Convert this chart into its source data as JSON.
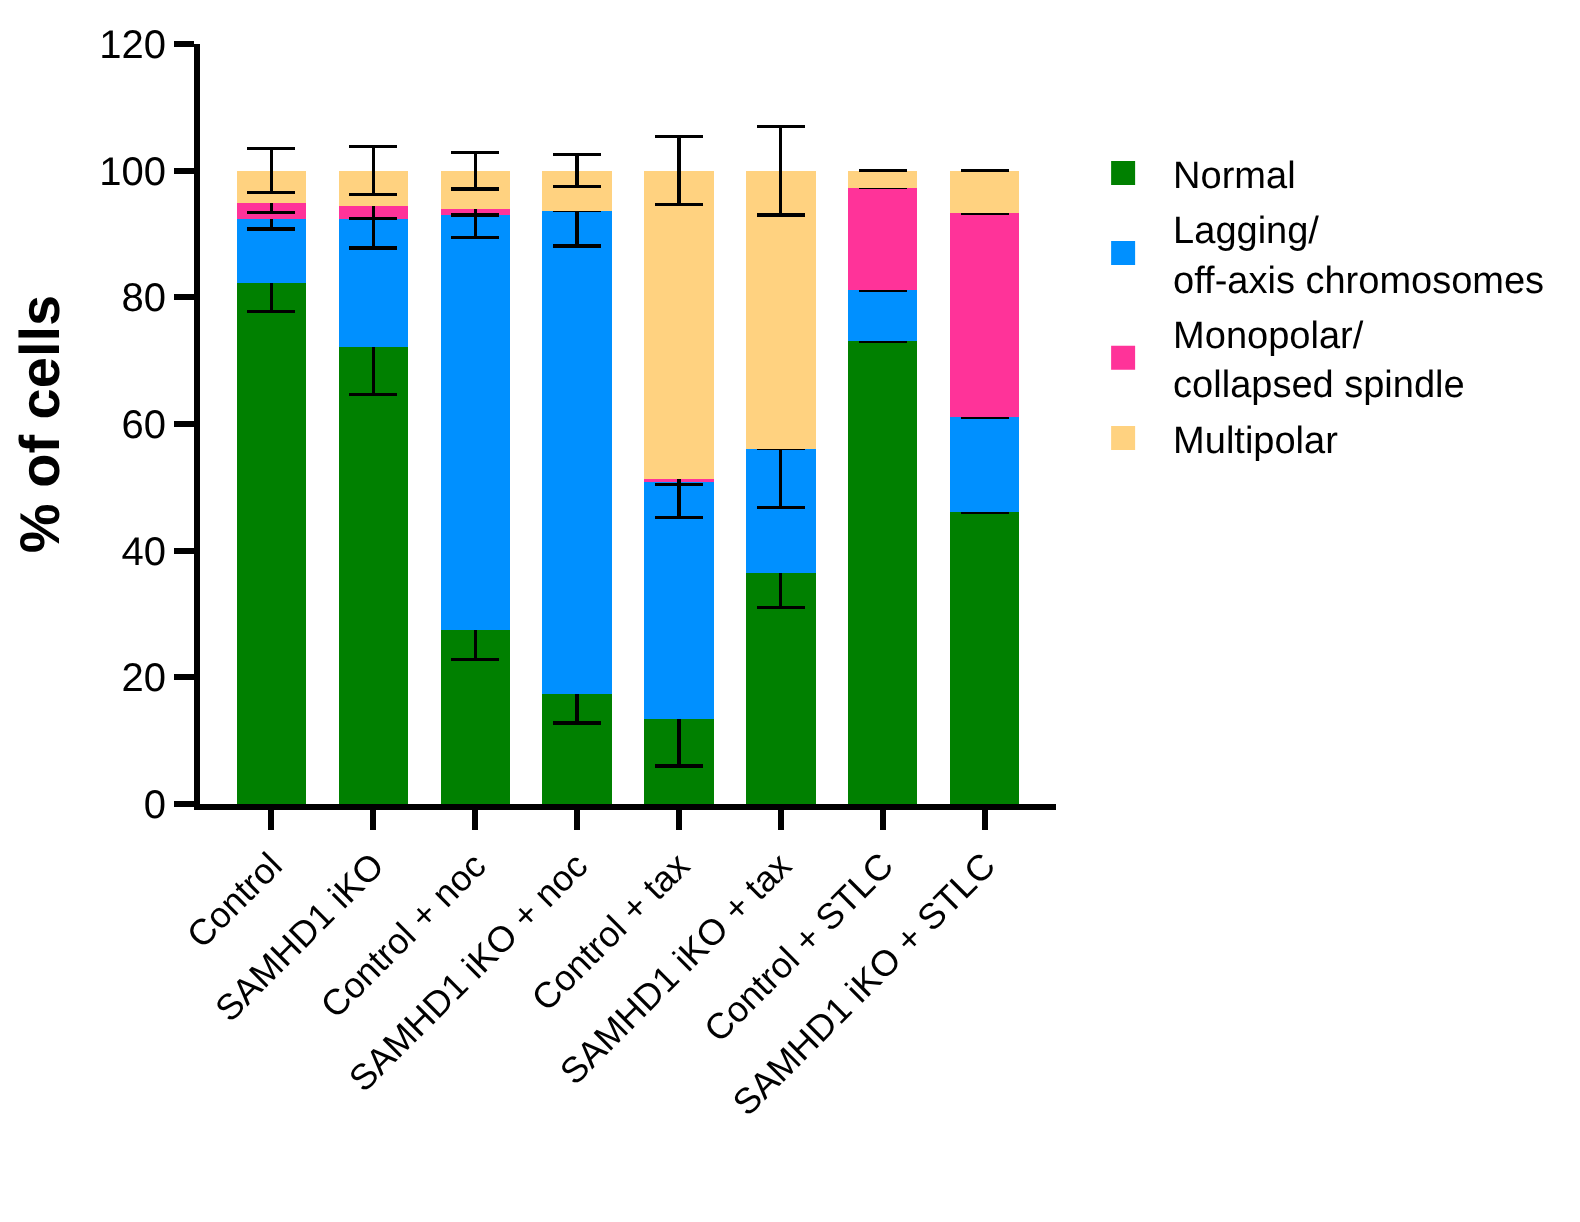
{
  "chart_data": {
    "type": "bar",
    "stacked": true,
    "ylabel": "% of cells",
    "categories": [
      "Control",
      "SAMHD1 iKO",
      "Control + noc",
      "SAMHD1 iKO + noc",
      "Control + tax",
      "SAMHD1 iKO + tax",
      "Control + STLC",
      "SAMHD1 iKO + STLC"
    ],
    "series": [
      {
        "name": "Normal",
        "color": "#008000",
        "values": [
          82.3,
          72.1,
          27.5,
          17.3,
          13.4,
          36.5,
          73.1,
          46.1
        ],
        "errors": [
          4.5,
          7.5,
          4.7,
          4.5,
          7.4,
          5.5,
          null,
          null
        ]
      },
      {
        "name": "Lagging/\noff-axis chromosomes",
        "color": "#0090ff",
        "values": [
          10.0,
          20.2,
          65.5,
          76.4,
          37.6,
          19.6,
          8.0,
          15.0
        ],
        "errors": [
          1.5,
          4.5,
          3.5,
          5.6,
          5.7,
          9.3,
          null,
          null
        ]
      },
      {
        "name": "Monopolar/\ncollapsed spindle",
        "color": "#ff3399",
        "values": [
          2.6,
          2.1,
          1.0,
          0,
          0.3,
          0,
          16.2,
          32.2
        ],
        "errors": [
          1.5,
          2,
          1,
          null,
          0.8,
          null,
          null,
          null
        ]
      },
      {
        "name": "Multipolar",
        "color": "#ffd280",
        "values": [
          5.1,
          5.6,
          6.0,
          6.3,
          48.7,
          43.9,
          2.7,
          6.7
        ],
        "errors": [
          3.5,
          3.8,
          2.9,
          2.5,
          5.4,
          7,
          null,
          null
        ]
      }
    ],
    "ylim": [
      0,
      120
    ],
    "yticks": [
      0,
      20,
      40,
      60,
      80,
      100,
      120
    ],
    "legend": "right"
  }
}
